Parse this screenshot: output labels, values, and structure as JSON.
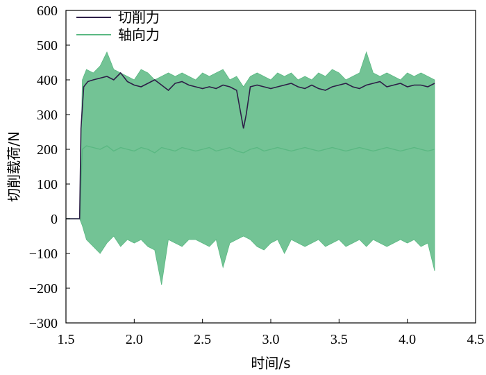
{
  "chart_data": {
    "type": "line",
    "xlabel": "时间/s",
    "ylabel": "切削载荷/N",
    "xlim": [
      1.5,
      4.5
    ],
    "ylim": [
      -300,
      600
    ],
    "x_ticks": [
      "1.5",
      "2.0",
      "2.5",
      "3.0",
      "3.5",
      "4.0",
      "4.5"
    ],
    "y_ticks": [
      "600",
      "500",
      "400",
      "300",
      "200",
      "100",
      "0",
      "−100",
      "−200",
      "−300"
    ],
    "legend_position": "top-left",
    "grid": false,
    "series": [
      {
        "name": "切削力",
        "color": "#2d1e47",
        "x": [
          1.5,
          1.6,
          1.61,
          1.63,
          1.66,
          1.7,
          1.75,
          1.8,
          1.85,
          1.9,
          1.95,
          2.0,
          2.05,
          2.1,
          2.15,
          2.2,
          2.25,
          2.3,
          2.35,
          2.4,
          2.45,
          2.5,
          2.55,
          2.6,
          2.65,
          2.7,
          2.75,
          2.8,
          2.82,
          2.85,
          2.9,
          2.95,
          3.0,
          3.05,
          3.1,
          3.15,
          3.2,
          3.25,
          3.3,
          3.35,
          3.4,
          3.45,
          3.5,
          3.55,
          3.6,
          3.65,
          3.7,
          3.75,
          3.8,
          3.85,
          3.9,
          3.95,
          4.0,
          4.05,
          4.1,
          4.15,
          4.2
        ],
        "y": [
          0,
          0,
          260,
          380,
          395,
          400,
          405,
          410,
          400,
          420,
          395,
          385,
          380,
          390,
          400,
          385,
          370,
          390,
          395,
          385,
          380,
          375,
          380,
          375,
          385,
          380,
          370,
          260,
          300,
          380,
          385,
          380,
          375,
          380,
          385,
          390,
          380,
          375,
          385,
          375,
          370,
          380,
          385,
          390,
          380,
          375,
          385,
          390,
          395,
          380,
          385,
          390,
          380,
          385,
          385,
          380,
          390
        ]
      },
      {
        "name": "轴向力",
        "color": "#5ab882",
        "x": [
          1.5,
          1.6,
          1.62,
          1.65,
          1.7,
          1.75,
          1.8,
          1.85,
          1.9,
          1.95,
          2.0,
          2.05,
          2.1,
          2.15,
          2.2,
          2.25,
          2.3,
          2.35,
          2.4,
          2.45,
          2.5,
          2.55,
          2.6,
          2.65,
          2.7,
          2.75,
          2.8,
          2.85,
          2.9,
          2.95,
          3.0,
          3.05,
          3.1,
          3.15,
          3.2,
          3.25,
          3.3,
          3.35,
          3.4,
          3.45,
          3.5,
          3.55,
          3.6,
          3.65,
          3.7,
          3.75,
          3.8,
          3.85,
          3.9,
          3.95,
          4.0,
          4.05,
          4.1,
          4.15,
          4.2
        ],
        "y": [
          0,
          0,
          200,
          210,
          205,
          200,
          210,
          195,
          205,
          200,
          195,
          205,
          200,
          190,
          205,
          200,
          195,
          205,
          200,
          195,
          200,
          205,
          195,
          200,
          205,
          195,
          190,
          200,
          205,
          195,
          200,
          205,
          200,
          195,
          200,
          205,
          200,
          195,
          200,
          205,
          200,
          195,
          200,
          205,
          200,
          195,
          200,
          205,
          200,
          195,
          200,
          205,
          200,
          195,
          200
        ],
        "y_upper": [
          0,
          0,
          400,
          430,
          420,
          440,
          480,
          430,
          420,
          410,
          400,
          430,
          420,
          400,
          410,
          420,
          410,
          420,
          410,
          400,
          420,
          410,
          420,
          430,
          400,
          410,
          380,
          410,
          420,
          410,
          400,
          420,
          410,
          420,
          400,
          410,
          400,
          420,
          410,
          430,
          420,
          400,
          410,
          420,
          480,
          420,
          410,
          420,
          410,
          400,
          420,
          410,
          420,
          410,
          400
        ],
        "y_lower": [
          0,
          0,
          -20,
          -60,
          -80,
          -100,
          -70,
          -50,
          -80,
          -60,
          -70,
          -60,
          -80,
          -90,
          -190,
          -60,
          -70,
          -80,
          -60,
          -60,
          -70,
          -80,
          -60,
          -140,
          -70,
          -60,
          -50,
          -60,
          -80,
          -90,
          -70,
          -60,
          -100,
          -60,
          -70,
          -80,
          -70,
          -60,
          -80,
          -70,
          -60,
          -80,
          -70,
          -60,
          -80,
          -60,
          -70,
          -80,
          -70,
          -60,
          -70,
          -60,
          -80,
          -70,
          -150
        ]
      }
    ]
  }
}
